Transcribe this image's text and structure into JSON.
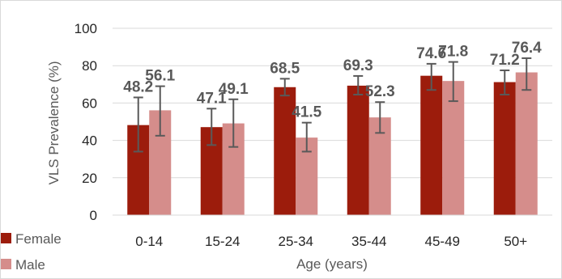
{
  "chart_data": {
    "type": "bar",
    "categories": [
      "0-14",
      "15-24",
      "25-34",
      "35-44",
      "45-49",
      "50+"
    ],
    "series": [
      {
        "name": "Female",
        "color": "#9c1c0c",
        "values": [
          48.2,
          47.1,
          68.5,
          69.3,
          74.6,
          71.2
        ],
        "ci_low": [
          34,
          37.5,
          64,
          64.5,
          67,
          64.5
        ],
        "ci_high": [
          63,
          57,
          73,
          74.5,
          81,
          77.5
        ]
      },
      {
        "name": "Male",
        "color": "#d58d8b",
        "values": [
          56.1,
          49.1,
          41.5,
          52.3,
          71.8,
          76.4
        ],
        "ci_low": [
          42.5,
          36.5,
          34,
          44,
          61,
          67
        ],
        "ci_high": [
          69,
          62,
          49.5,
          60.5,
          82,
          84
        ]
      }
    ],
    "title": "",
    "xlabel": "Age (years)",
    "ylabel": "VLS Prevalence (%)",
    "ylim": [
      0,
      100
    ],
    "yticks": [
      "0",
      "20",
      "40",
      "60",
      "80",
      "100"
    ],
    "grid": true,
    "legend_position": "bottom-left"
  }
}
